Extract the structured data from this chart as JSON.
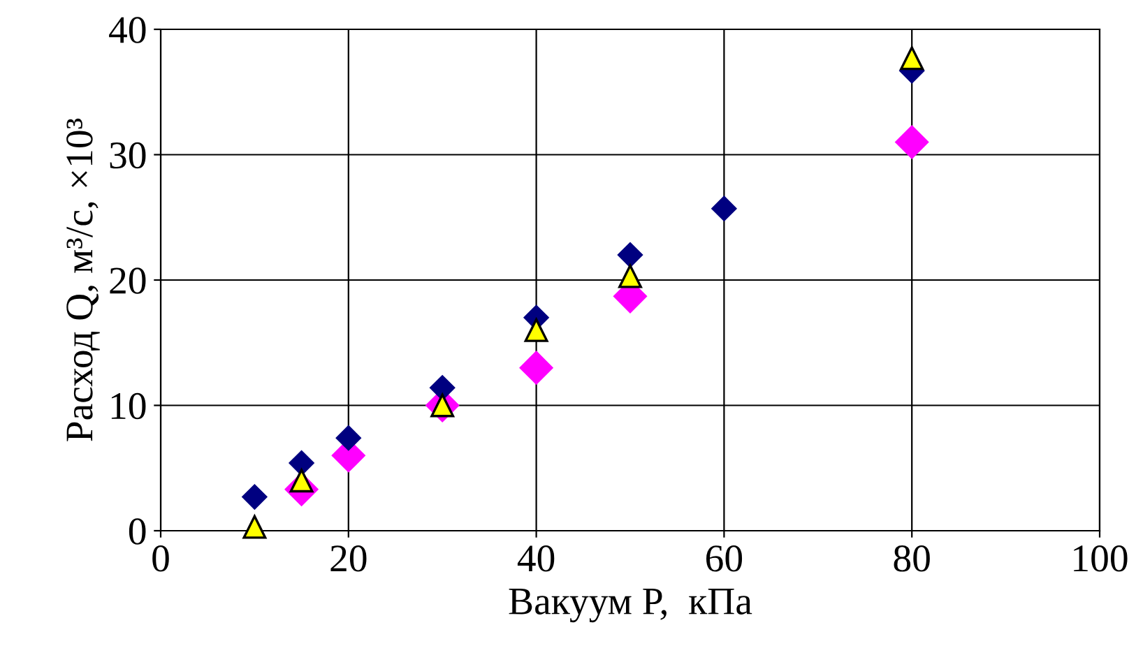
{
  "chart_data": {
    "type": "scatter",
    "xlabel": "Вакуум P,  кПа",
    "ylabel": "Расход Q, м³/с, ×10³",
    "xlim": [
      0,
      100
    ],
    "xticks": [
      0,
      20,
      40,
      60,
      80,
      100
    ],
    "ylim": [
      0,
      40
    ],
    "yticks": [
      0,
      10,
      20,
      30,
      40
    ],
    "grid": true,
    "legend": false,
    "series": [
      {
        "color": "#ff00ff",
        "marker": "diamond",
        "x": [
          15,
          20,
          30,
          40,
          50,
          80
        ],
        "values": [
          3.3,
          6,
          10,
          13,
          18.7,
          31
        ]
      },
      {
        "color": "#000080",
        "marker": "diamond",
        "x": [
          10,
          15,
          20,
          30,
          40,
          50,
          60,
          80
        ],
        "values": [
          2.7,
          5.4,
          7.4,
          11.4,
          17,
          22,
          25.7,
          36.7
        ]
      },
      {
        "color": "#ffff00",
        "marker": "triangle",
        "x": [
          10,
          15,
          30,
          40,
          50,
          80
        ],
        "values": [
          0.3,
          4,
          10,
          16,
          20.3,
          37.7
        ]
      }
    ]
  }
}
